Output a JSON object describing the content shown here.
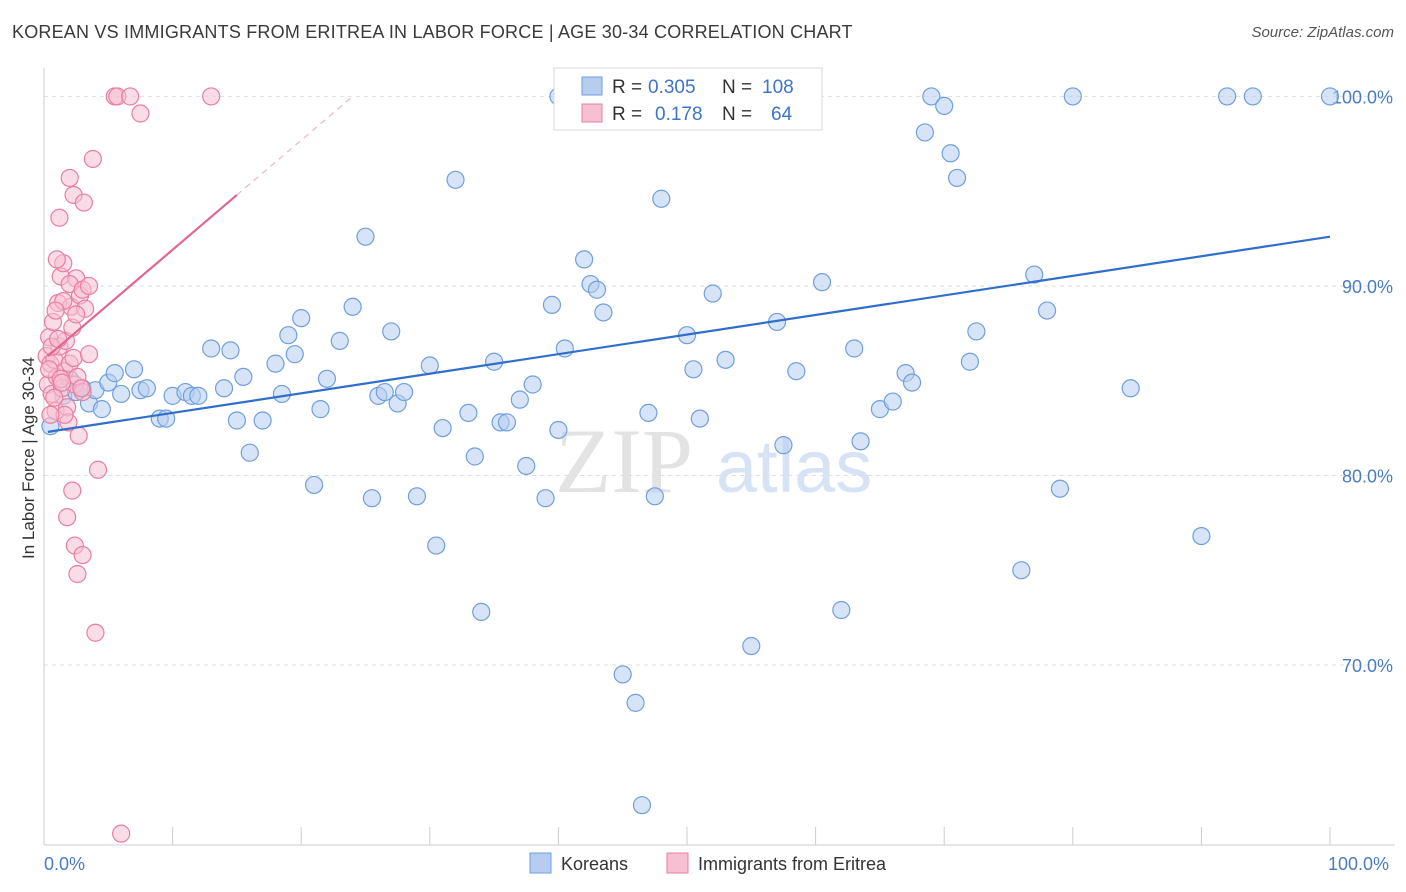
{
  "title": "KOREAN VS IMMIGRANTS FROM ERITREA IN LABOR FORCE | AGE 30-34 CORRELATION CHART",
  "source": "Source: ZipAtlas.com",
  "watermark": {
    "zip": "ZIP",
    "atlas": "atlas"
  },
  "chart_data": {
    "type": "scatter",
    "title": "KOREAN VS IMMIGRANTS FROM ERITREA IN LABOR FORCE | AGE 30-34 CORRELATION CHART",
    "xlabel": "",
    "ylabel": "In Labor Force | Age 30-34",
    "xlim": [
      0,
      100
    ],
    "ylim": [
      60.5,
      101.5
    ],
    "y_ticks": [
      {
        "value": 100,
        "label": "100.0%"
      },
      {
        "value": 90,
        "label": "90.0%"
      },
      {
        "value": 80,
        "label": "80.0%"
      },
      {
        "value": 70,
        "label": "70.0%"
      }
    ],
    "x_tick_labels": {
      "min": "0.0%",
      "max": "100.0%"
    },
    "grid": true,
    "legend": {
      "position": "top-center",
      "entries": [
        {
          "r_label": "R =",
          "r_value": "0.305",
          "n_label": "N =",
          "n_value": "108"
        },
        {
          "r_label": "R =",
          "r_value": "0.178",
          "n_label": "N =",
          "n_value": "64"
        }
      ]
    },
    "series": [
      {
        "name": "Koreans",
        "color": "#6f9fde",
        "fill": "#b7cdf0",
        "trend": {
          "x1": 0.3,
          "y1": 82.3,
          "x2": 100,
          "y2": 92.6
        },
        "points": [
          [
            0.5,
            82.6
          ],
          [
            1.5,
            84.2
          ],
          [
            2,
            85.1
          ],
          [
            2.5,
            84.4
          ],
          [
            3,
            84.6
          ],
          [
            3.5,
            83.8
          ],
          [
            4,
            84.5
          ],
          [
            4.5,
            83.5
          ],
          [
            5,
            84.9
          ],
          [
            5.5,
            85.4
          ],
          [
            6,
            84.3
          ],
          [
            7,
            85.6
          ],
          [
            7.5,
            84.5
          ],
          [
            8,
            84.6
          ],
          [
            9,
            83
          ],
          [
            9.5,
            83
          ],
          [
            10,
            84.2
          ],
          [
            11,
            84.4
          ],
          [
            11.5,
            84.2
          ],
          [
            12,
            84.2
          ],
          [
            13,
            86.7
          ],
          [
            14,
            84.6
          ],
          [
            14.5,
            86.6
          ],
          [
            15,
            82.9
          ],
          [
            15.5,
            85.2
          ],
          [
            16,
            81.2
          ],
          [
            17,
            82.9
          ],
          [
            18,
            85.9
          ],
          [
            18.5,
            84.3
          ],
          [
            19,
            87.4
          ],
          [
            19.5,
            86.4
          ],
          [
            20,
            88.3
          ],
          [
            21,
            79.5
          ],
          [
            21.5,
            83.5
          ],
          [
            22,
            85.1
          ],
          [
            23,
            87.1
          ],
          [
            24,
            88.9
          ],
          [
            25,
            92.6
          ],
          [
            25.5,
            78.8
          ],
          [
            26,
            84.2
          ],
          [
            26.5,
            84.4
          ],
          [
            27,
            87.6
          ],
          [
            27.5,
            83.8
          ],
          [
            28,
            84.4
          ],
          [
            29,
            78.9
          ],
          [
            30,
            85.8
          ],
          [
            30.5,
            76.3
          ],
          [
            31,
            82.5
          ],
          [
            32,
            95.6
          ],
          [
            33,
            83.3
          ],
          [
            33.5,
            81
          ],
          [
            34,
            72.8
          ],
          [
            35,
            86
          ],
          [
            35.5,
            82.8
          ],
          [
            36,
            82.8
          ],
          [
            37,
            84
          ],
          [
            37.5,
            80.5
          ],
          [
            38,
            84.8
          ],
          [
            39,
            78.8
          ],
          [
            39.5,
            89
          ],
          [
            40,
            82.4
          ],
          [
            40.5,
            86.7
          ],
          [
            42,
            91.4
          ],
          [
            42.5,
            90.1
          ],
          [
            43,
            89.8
          ],
          [
            43.5,
            88.6
          ],
          [
            45,
            69.5
          ],
          [
            46,
            68
          ],
          [
            46.5,
            62.6
          ],
          [
            47,
            83.3
          ],
          [
            47.5,
            78.9
          ],
          [
            48,
            94.6
          ],
          [
            50,
            87.4
          ],
          [
            50.5,
            85.6
          ],
          [
            51,
            83
          ],
          [
            52,
            89.6
          ],
          [
            53,
            86.1
          ],
          [
            55,
            71
          ],
          [
            57,
            88.1
          ],
          [
            57.5,
            81.6
          ],
          [
            58.5,
            85.5
          ],
          [
            60.5,
            90.2
          ],
          [
            62,
            72.9
          ],
          [
            63,
            86.7
          ],
          [
            63.5,
            81.8
          ],
          [
            65,
            83.5
          ],
          [
            66,
            83.9
          ],
          [
            67,
            85.4
          ],
          [
            67.5,
            84.9
          ],
          [
            68.5,
            98.1
          ],
          [
            69,
            100
          ],
          [
            70.5,
            97
          ],
          [
            71,
            95.7
          ],
          [
            72,
            86
          ],
          [
            72.5,
            87.6
          ],
          [
            76,
            75
          ],
          [
            77,
            90.6
          ],
          [
            78,
            88.7
          ],
          [
            79,
            79.3
          ],
          [
            80,
            100
          ],
          [
            84.5,
            84.6
          ],
          [
            90,
            76.8
          ],
          [
            92,
            100
          ],
          [
            94,
            100
          ],
          [
            100,
            100
          ],
          [
            40,
            100
          ],
          [
            55,
            100
          ],
          [
            70,
            99.5
          ]
        ]
      },
      {
        "name": "Immigrants from Eritrea",
        "color": "#e87fa0",
        "fill": "#f6c0d2",
        "trend": {
          "x1": 0.3,
          "y1": 86.3,
          "x2": 15,
          "y2": 94.8
        },
        "trend_dashed": {
          "x1": 15,
          "y1": 94.8,
          "x2": 24,
          "y2": 100
        },
        "points": [
          [
            0.2,
            86.3
          ],
          [
            0.3,
            84.8
          ],
          [
            0.4,
            87.3
          ],
          [
            0.5,
            85.9
          ],
          [
            0.6,
            84.3
          ],
          [
            0.7,
            88.1
          ],
          [
            0.8,
            86.1
          ],
          [
            0.9,
            83.4
          ],
          [
            1,
            85.2
          ],
          [
            1.1,
            89.1
          ],
          [
            1.2,
            86.8
          ],
          [
            1.3,
            90.5
          ],
          [
            1.4,
            84.6
          ],
          [
            1.5,
            91.2
          ],
          [
            1.6,
            85.5
          ],
          [
            1.7,
            87.1
          ],
          [
            1.8,
            83.6
          ],
          [
            1.9,
            82.8
          ],
          [
            2,
            85.9
          ],
          [
            2.1,
            88.9
          ],
          [
            2.2,
            87.8
          ],
          [
            2.3,
            86.2
          ],
          [
            2.4,
            84.8
          ],
          [
            2.5,
            90.4
          ],
          [
            2.6,
            85.2
          ],
          [
            2.7,
            82.1
          ],
          [
            2.8,
            89.5
          ],
          [
            3,
            84.4
          ],
          [
            3.2,
            88.8
          ],
          [
            3.5,
            86.4
          ],
          [
            1,
            91.4
          ],
          [
            1.5,
            89.2
          ],
          [
            2,
            90.1
          ],
          [
            2.5,
            88.5
          ],
          [
            3,
            89.8
          ],
          [
            3.5,
            90
          ],
          [
            1.2,
            93.6
          ],
          [
            2,
            95.7
          ],
          [
            2.3,
            94.8
          ],
          [
            3.1,
            94.4
          ],
          [
            3.8,
            96.7
          ],
          [
            5.5,
            100
          ],
          [
            5.7,
            100
          ],
          [
            6.7,
            100
          ],
          [
            7.5,
            99.1
          ],
          [
            13,
            100
          ],
          [
            1.8,
            77.8
          ],
          [
            2.2,
            79.2
          ],
          [
            2.4,
            76.3
          ],
          [
            2.6,
            74.8
          ],
          [
            3,
            75.8
          ],
          [
            4,
            71.7
          ],
          [
            4.2,
            80.3
          ],
          [
            0.8,
            84.1
          ],
          [
            1.6,
            83.2
          ],
          [
            0.4,
            85.6
          ],
          [
            0.6,
            86.8
          ],
          [
            1.1,
            87.2
          ],
          [
            1.3,
            85.1
          ],
          [
            0.9,
            88.7
          ],
          [
            6,
            61.1
          ],
          [
            1.4,
            84.9
          ],
          [
            2.9,
            84.6
          ],
          [
            0.5,
            83.2
          ]
        ]
      }
    ]
  }
}
